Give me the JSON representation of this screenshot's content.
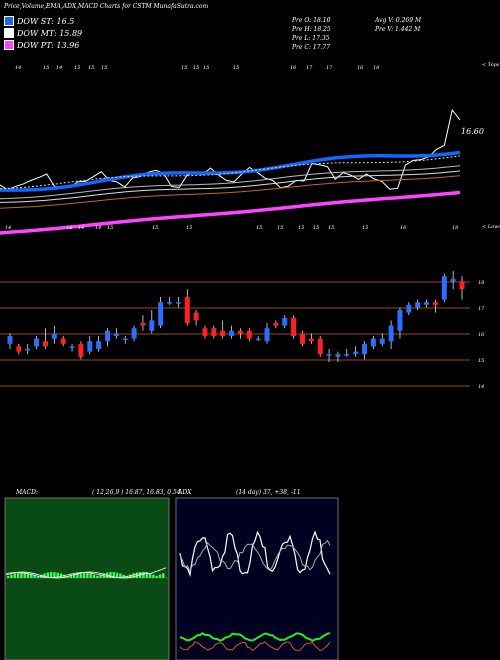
{
  "header": {
    "title": "Price,Volume,EMA,ADX,MACD Charts for CSTM MunafaSutra.com"
  },
  "legend": [
    {
      "label": "DOW ST: 16.5",
      "color": "#1565ff"
    },
    {
      "label": "DOW MT: 15.89",
      "color": "#ffffff"
    },
    {
      "label": "DOW PT: 13.96",
      "color": "#ff44ff"
    }
  ],
  "stats": {
    "open": "Pre   O: 18.10",
    "high": "Pre   H: 18.25",
    "low": "Pre   L: 17.35",
    "close": "Pre   C: 17.77",
    "avg_vol": "Avg V: 0.269 M",
    "pre_vol": "Pre   V: 1.442   M"
  },
  "top_right_label": "< Tops",
  "mid_right_label": "< Lows",
  "price_last_label": "16.60",
  "top_ticks": [
    "14",
    "15",
    "14",
    "15",
    "15",
    "15",
    "15",
    "15",
    "15",
    "15",
    "16",
    "17",
    "17",
    "16",
    "18"
  ],
  "low_ticks": [
    "14",
    "14",
    "14",
    "14",
    "15",
    "15",
    "15",
    "15",
    "15",
    "15",
    "15",
    "15",
    "15",
    "16",
    "18"
  ],
  "candle_axis": [
    "18",
    "17",
    "16",
    "15",
    "14"
  ],
  "candles": [
    {
      "o": 15.7,
      "c": 16.0,
      "h": 16.1,
      "l": 15.5
    },
    {
      "o": 15.6,
      "c": 15.4,
      "h": 15.7,
      "l": 15.3
    },
    {
      "o": 15.5,
      "c": 15.5,
      "h": 15.7,
      "l": 15.3
    },
    {
      "o": 15.6,
      "c": 15.9,
      "h": 16.0,
      "l": 15.5
    },
    {
      "o": 15.8,
      "c": 15.6,
      "h": 16.3,
      "l": 15.5
    },
    {
      "o": 15.9,
      "c": 16.1,
      "h": 16.4,
      "l": 15.7
    },
    {
      "o": 15.9,
      "c": 15.7,
      "h": 16.0,
      "l": 15.6
    },
    {
      "o": 15.6,
      "c": 15.6,
      "h": 15.7,
      "l": 15.4
    },
    {
      "o": 15.7,
      "c": 15.2,
      "h": 15.8,
      "l": 15.1
    },
    {
      "o": 15.4,
      "c": 15.8,
      "h": 16.0,
      "l": 15.3
    },
    {
      "o": 15.5,
      "c": 15.8,
      "h": 16.0,
      "l": 15.4
    },
    {
      "o": 15.8,
      "c": 16.2,
      "h": 16.3,
      "l": 15.6
    },
    {
      "o": 16.0,
      "c": 16.1,
      "h": 16.3,
      "l": 15.9
    },
    {
      "o": 15.9,
      "c": 15.9,
      "h": 16.0,
      "l": 15.7
    },
    {
      "o": 15.9,
      "c": 16.3,
      "h": 16.4,
      "l": 15.8
    },
    {
      "o": 16.5,
      "c": 16.4,
      "h": 16.8,
      "l": 16.2
    },
    {
      "o": 16.2,
      "c": 16.6,
      "h": 17.0,
      "l": 16.1
    },
    {
      "o": 16.4,
      "c": 17.3,
      "h": 17.5,
      "l": 16.3
    },
    {
      "o": 17.3,
      "c": 17.3,
      "h": 17.5,
      "l": 17.2
    },
    {
      "o": 17.3,
      "c": 17.3,
      "h": 17.5,
      "l": 17.1
    },
    {
      "o": 17.5,
      "c": 16.5,
      "h": 17.8,
      "l": 16.4
    },
    {
      "o": 16.9,
      "c": 16.6,
      "h": 17.0,
      "l": 16.4
    },
    {
      "o": 16.3,
      "c": 16.0,
      "h": 16.4,
      "l": 15.9
    },
    {
      "o": 16.3,
      "c": 16.0,
      "h": 16.4,
      "l": 15.9
    },
    {
      "o": 16.2,
      "c": 16.0,
      "h": 16.6,
      "l": 15.9
    },
    {
      "o": 16.0,
      "c": 16.2,
      "h": 16.4,
      "l": 15.9
    },
    {
      "o": 16.2,
      "c": 16.1,
      "h": 16.3,
      "l": 15.9
    },
    {
      "o": 16.2,
      "c": 15.9,
      "h": 16.3,
      "l": 15.8
    },
    {
      "o": 15.9,
      "c": 15.9,
      "h": 16.0,
      "l": 15.8
    },
    {
      "o": 15.8,
      "c": 16.3,
      "h": 16.5,
      "l": 15.7
    },
    {
      "o": 16.5,
      "c": 16.4,
      "h": 16.6,
      "l": 16.3
    },
    {
      "o": 16.4,
      "c": 16.7,
      "h": 16.8,
      "l": 16.3
    },
    {
      "o": 16.7,
      "c": 16.0,
      "h": 16.8,
      "l": 15.9
    },
    {
      "o": 16.1,
      "c": 15.7,
      "h": 16.2,
      "l": 15.6
    },
    {
      "o": 15.9,
      "c": 15.8,
      "h": 16.1,
      "l": 15.7
    },
    {
      "o": 15.9,
      "c": 15.3,
      "h": 16.0,
      "l": 15.2
    },
    {
      "o": 15.3,
      "c": 15.3,
      "h": 15.5,
      "l": 15.0
    },
    {
      "o": 15.2,
      "c": 15.3,
      "h": 15.4,
      "l": 15.0
    },
    {
      "o": 15.3,
      "c": 15.3,
      "h": 15.5,
      "l": 15.2
    },
    {
      "o": 15.3,
      "c": 15.4,
      "h": 15.6,
      "l": 15.2
    },
    {
      "o": 15.3,
      "c": 15.7,
      "h": 15.8,
      "l": 15.1
    },
    {
      "o": 15.6,
      "c": 15.9,
      "h": 16.0,
      "l": 15.5
    },
    {
      "o": 15.7,
      "c": 15.9,
      "h": 16.1,
      "l": 15.6
    },
    {
      "o": 15.8,
      "c": 16.4,
      "h": 16.6,
      "l": 15.5
    },
    {
      "o": 16.2,
      "c": 17.0,
      "h": 17.1,
      "l": 15.9
    },
    {
      "o": 16.9,
      "c": 17.2,
      "h": 17.3,
      "l": 16.8
    },
    {
      "o": 17.1,
      "c": 17.3,
      "h": 17.4,
      "l": 17.0
    },
    {
      "o": 17.2,
      "c": 17.3,
      "h": 17.4,
      "l": 17.1
    },
    {
      "o": 17.3,
      "c": 17.2,
      "h": 17.4,
      "l": 16.9
    },
    {
      "o": 17.4,
      "c": 18.3,
      "h": 18.4,
      "l": 17.3
    },
    {
      "o": 18.1,
      "c": 18.2,
      "h": 18.5,
      "l": 17.8
    },
    {
      "o": 18.1,
      "c": 17.8,
      "h": 18.3,
      "l": 17.4
    }
  ],
  "chart_data": {
    "type": "line",
    "title": "Price,Volume,EMA,ADX,MACD Charts for CSTM MunafaSutra.com",
    "series": [
      {
        "name": "DOW ST",
        "values": [
          14.6,
          14.7,
          14.9,
          15.0,
          15.2,
          15.4,
          15.6,
          15.9,
          16.1,
          16.3,
          16.5
        ]
      },
      {
        "name": "DOW MT",
        "values": [
          14.7,
          14.8,
          14.9,
          15.0,
          15.2,
          15.3,
          15.4,
          15.6,
          15.7,
          15.8,
          15.89
        ]
      },
      {
        "name": "DOW PT",
        "values": [
          12.9,
          13.0,
          13.1,
          13.2,
          13.3,
          13.4,
          13.5,
          13.6,
          13.7,
          13.85,
          13.96
        ]
      }
    ]
  },
  "macd": {
    "title": "MACD:",
    "values": "( 12,26,9 ) 16.87,  16.83,  0.54"
  },
  "adx": {
    "title": "ADX",
    "values": "(14  day) 37,  +38,  -11"
  },
  "colors": {
    "blue": "#1565ff",
    "magenta": "#ff44ff",
    "orange": "#c8641e",
    "green_bg": "#0a4a14",
    "navy_bg": "#000020",
    "up": "#2a6fff",
    "down": "#ff2020"
  }
}
